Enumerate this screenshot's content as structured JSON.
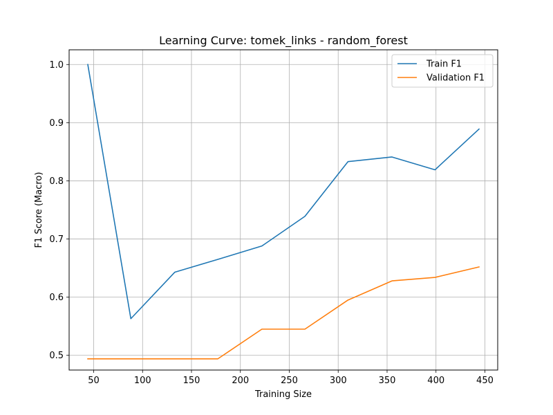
{
  "chart_data": {
    "type": "line",
    "title": "Learning Curve: tomek_links - random_forest",
    "xlabel": "Training Size",
    "ylabel": "F1 Score (Macro)",
    "xlim": [
      24.9,
      463.1
    ],
    "ylim": [
      0.4747,
      1.0253
    ],
    "x_ticks": [
      50,
      100,
      150,
      200,
      250,
      300,
      350,
      400,
      450
    ],
    "y_ticks": [
      0.5,
      0.6,
      0.7,
      0.8,
      0.9,
      1.0
    ],
    "y_tick_labels": [
      "0.5",
      "0.6",
      "0.7",
      "0.8",
      "0.9",
      "1.0"
    ],
    "grid": true,
    "legend_position": "top-right",
    "x": [
      44,
      88,
      133,
      177,
      222,
      266,
      310,
      355,
      399,
      444
    ],
    "series": [
      {
        "name": "Train F1",
        "color": "#1f77b4",
        "values": [
          1.0,
          0.563,
          0.643,
          0.665,
          0.688,
          0.739,
          0.833,
          0.841,
          0.819,
          0.889
        ]
      },
      {
        "name": "Validation F1",
        "color": "#ff7f0e",
        "values": [
          0.494,
          0.494,
          0.494,
          0.494,
          0.545,
          0.545,
          0.595,
          0.628,
          0.634,
          0.652
        ]
      }
    ]
  }
}
